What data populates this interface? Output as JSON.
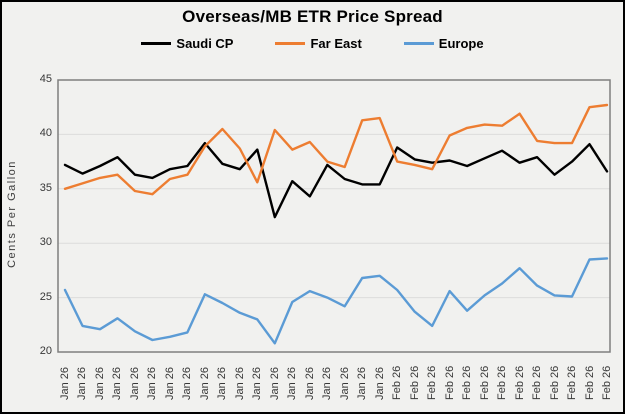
{
  "chart_data": {
    "type": "line",
    "title": "Overseas/MB ETR Price Spread",
    "ylabel": "Cents Per Gallon",
    "ylim": [
      20,
      45
    ],
    "y_ticks": [
      45,
      40,
      35,
      30,
      25,
      20
    ],
    "grid": "horizontal",
    "legend_position": "top",
    "categories": [
      "Jan 26",
      "Jan 26",
      "Jan 26",
      "Jan 26",
      "Jan 26",
      "Jan 26",
      "Jan 26",
      "Jan 26",
      "Jan 26",
      "Jan 26",
      "Jan 26",
      "Jan 26",
      "Jan 26",
      "Jan 26",
      "Jan 26",
      "Jan 26",
      "Jan 26",
      "Jan 26",
      "Jan 26",
      "Feb 26",
      "Feb 26",
      "Feb 26",
      "Feb 26",
      "Feb 26",
      "Feb 26",
      "Feb 26",
      "Feb 26",
      "Feb 26",
      "Feb 26",
      "Feb 26",
      "Feb 26",
      "Feb 26"
    ],
    "series": [
      {
        "name": "Saudi CP",
        "color": "#000000",
        "values": [
          37.2,
          36.4,
          37.1,
          37.9,
          36.3,
          36.0,
          36.8,
          37.1,
          39.2,
          37.3,
          36.8,
          38.6,
          32.4,
          35.7,
          34.3,
          37.2,
          35.9,
          35.4,
          35.4,
          38.8,
          37.7,
          37.4,
          37.6,
          37.1,
          37.8,
          38.5,
          37.4,
          37.9,
          36.3,
          37.5,
          39.1,
          36.6
        ]
      },
      {
        "name": "Far East",
        "color": "#ED7D31",
        "values": [
          35.0,
          35.5,
          36.0,
          36.3,
          34.8,
          34.5,
          35.9,
          36.3,
          38.9,
          40.5,
          38.7,
          35.6,
          40.4,
          38.6,
          39.3,
          37.5,
          37.0,
          41.3,
          41.5,
          37.5,
          37.2,
          36.8,
          39.9,
          40.6,
          40.9,
          40.8,
          41.9,
          39.4,
          39.2,
          39.2,
          42.5,
          42.7
        ]
      },
      {
        "name": "Europe",
        "color": "#5B9BD5",
        "values": [
          25.7,
          22.4,
          22.1,
          23.1,
          21.9,
          21.1,
          21.4,
          21.8,
          25.3,
          24.5,
          23.6,
          23.0,
          20.8,
          24.6,
          25.6,
          25.0,
          24.2,
          26.8,
          27.0,
          25.7,
          23.7,
          22.4,
          25.6,
          23.8,
          25.2,
          26.3,
          27.7,
          26.1,
          25.2,
          25.1,
          28.5,
          28.6
        ]
      }
    ]
  },
  "colors": {
    "background": "#F1F1EF",
    "frame_border": "#000000",
    "plot_border": "#7F7F7F",
    "gridline": "#DCDCDC",
    "tick_text": "#383838"
  }
}
